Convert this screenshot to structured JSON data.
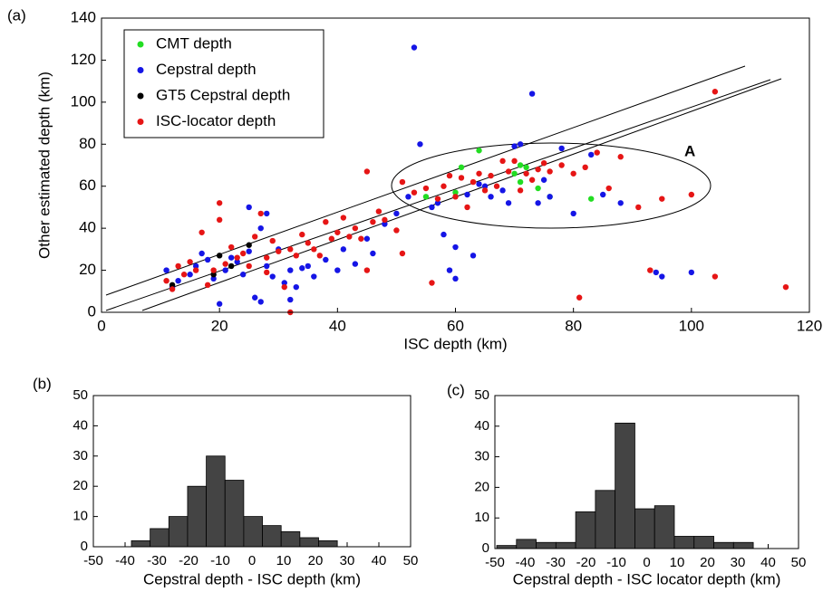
{
  "chart_data": [
    {
      "type": "scatter",
      "panel_label": "(a)",
      "xlabel": "ISC depth (km)",
      "ylabel": "Other estimated depth (km)",
      "xlim": [
        0,
        120
      ],
      "xticks": [
        0,
        20,
        40,
        60,
        80,
        100,
        120
      ],
      "ylim": [
        0,
        140
      ],
      "yticks": [
        0,
        20,
        40,
        60,
        80,
        100,
        120,
        140
      ],
      "legend": "upper left",
      "annotation": "A",
      "series": [
        {
          "name": "CMT depth",
          "color": "#22dd22",
          "x": [
            55,
            60,
            61,
            64,
            70,
            71,
            72,
            74,
            76,
            83,
            71
          ],
          "values": [
            55,
            57,
            69,
            77,
            66,
            62,
            69,
            59,
            55,
            54,
            70
          ]
        },
        {
          "name": "Cepstral depth",
          "color": "#1515e6",
          "x": [
            11,
            12,
            13,
            15,
            16,
            17,
            18,
            19,
            20,
            21,
            22,
            23,
            24,
            25,
            25,
            26,
            27,
            27,
            28,
            28,
            29,
            30,
            31,
            32,
            32,
            33,
            34,
            35,
            36,
            38,
            40,
            41,
            43,
            45,
            46,
            48,
            50,
            52,
            53,
            54,
            56,
            57,
            58,
            59,
            60,
            60,
            62,
            63,
            64,
            65,
            66,
            68,
            69,
            70,
            71,
            73,
            74,
            75,
            76,
            78,
            80,
            83,
            85,
            88,
            94,
            95,
            100
          ],
          "values": [
            20,
            12,
            15,
            18,
            22,
            28,
            25,
            16,
            4,
            20,
            26,
            24,
            18,
            50,
            29,
            7,
            5,
            40,
            47,
            22,
            17,
            30,
            14,
            6,
            20,
            12,
            21,
            22,
            17,
            25,
            20,
            30,
            23,
            35,
            28,
            42,
            47,
            55,
            126,
            80,
            50,
            52,
            37,
            20,
            16,
            31,
            56,
            27,
            61,
            60,
            55,
            58,
            52,
            79,
            80,
            104,
            52,
            63,
            55,
            78,
            47,
            75,
            56,
            52,
            19,
            17,
            19
          ]
        },
        {
          "name": "GT5 Cepstral depth",
          "color": "#000000",
          "x": [
            12,
            19,
            20,
            25,
            22
          ],
          "values": [
            13,
            18,
            27,
            32,
            22
          ]
        },
        {
          "name": "ISC-locator depth",
          "color": "#e61515",
          "x": [
            11,
            12,
            13,
            14,
            15,
            16,
            17,
            18,
            19,
            20,
            20,
            21,
            22,
            23,
            24,
            25,
            26,
            27,
            28,
            28,
            29,
            30,
            31,
            32,
            32,
            33,
            34,
            35,
            36,
            37,
            38,
            39,
            40,
            41,
            42,
            43,
            44,
            45,
            45,
            46,
            47,
            48,
            50,
            51,
            51,
            53,
            55,
            56,
            57,
            58,
            59,
            60,
            61,
            62,
            63,
            64,
            65,
            66,
            67,
            68,
            69,
            70,
            71,
            72,
            73,
            74,
            75,
            76,
            78,
            80,
            81,
            82,
            84,
            86,
            88,
            91,
            93,
            95,
            100,
            104,
            104,
            116
          ],
          "values": [
            15,
            11,
            22,
            18,
            24,
            20,
            38,
            13,
            20,
            52,
            44,
            23,
            31,
            26,
            28,
            22,
            36,
            47,
            19,
            26,
            34,
            29,
            12,
            0,
            30,
            27,
            37,
            33,
            30,
            27,
            43,
            35,
            38,
            45,
            36,
            40,
            35,
            67,
            20,
            43,
            48,
            44,
            39,
            28,
            62,
            57,
            59,
            14,
            54,
            60,
            65,
            55,
            64,
            50,
            62,
            66,
            58,
            65,
            60,
            72,
            67,
            72,
            58,
            66,
            63,
            68,
            71,
            67,
            70,
            66,
            7,
            69,
            76,
            59,
            74,
            50,
            20,
            54,
            56,
            17,
            105,
            12
          ]
        }
      ]
    },
    {
      "type": "histogram",
      "panel_label": "(b)",
      "xlabel": "Cepstral depth - ISC depth (km)",
      "color": "#444444",
      "xlim": [
        -50,
        50
      ],
      "xticks": [
        -50,
        -40,
        -30,
        -20,
        -10,
        0,
        10,
        20,
        30,
        40,
        50
      ],
      "ylim": [
        0,
        50
      ],
      "yticks": [
        0,
        10,
        20,
        30,
        40,
        50
      ],
      "bins": [
        -38,
        -32.1,
        -26.2,
        -20.3,
        -14.4,
        -8.5,
        -2.6,
        3.3,
        9.2,
        15.1,
        21,
        26.9
      ],
      "values": [
        2,
        6,
        10,
        20,
        30,
        22,
        10,
        7,
        5,
        3,
        2
      ]
    },
    {
      "type": "histogram",
      "panel_label": "(c)",
      "xlabel": "Cepstral depth - ISC locator depth (km)",
      "color": "#444444",
      "xlim": [
        -50,
        50
      ],
      "xticks": [
        -50,
        -40,
        -30,
        -20,
        -10,
        0,
        10,
        20,
        30,
        40,
        50
      ],
      "ylim": [
        0,
        50
      ],
      "yticks": [
        0,
        10,
        20,
        30,
        40,
        50
      ],
      "bins": [
        -49.4,
        -42.9,
        -36.4,
        -29.9,
        -23.4,
        -16.9,
        -10.4,
        -3.9,
        2.6,
        9.1,
        15.6,
        22.1,
        28.6,
        35.1
      ],
      "values": [
        1,
        3,
        2,
        2,
        12,
        19,
        41,
        13,
        14,
        4,
        4,
        2,
        2
      ]
    }
  ]
}
